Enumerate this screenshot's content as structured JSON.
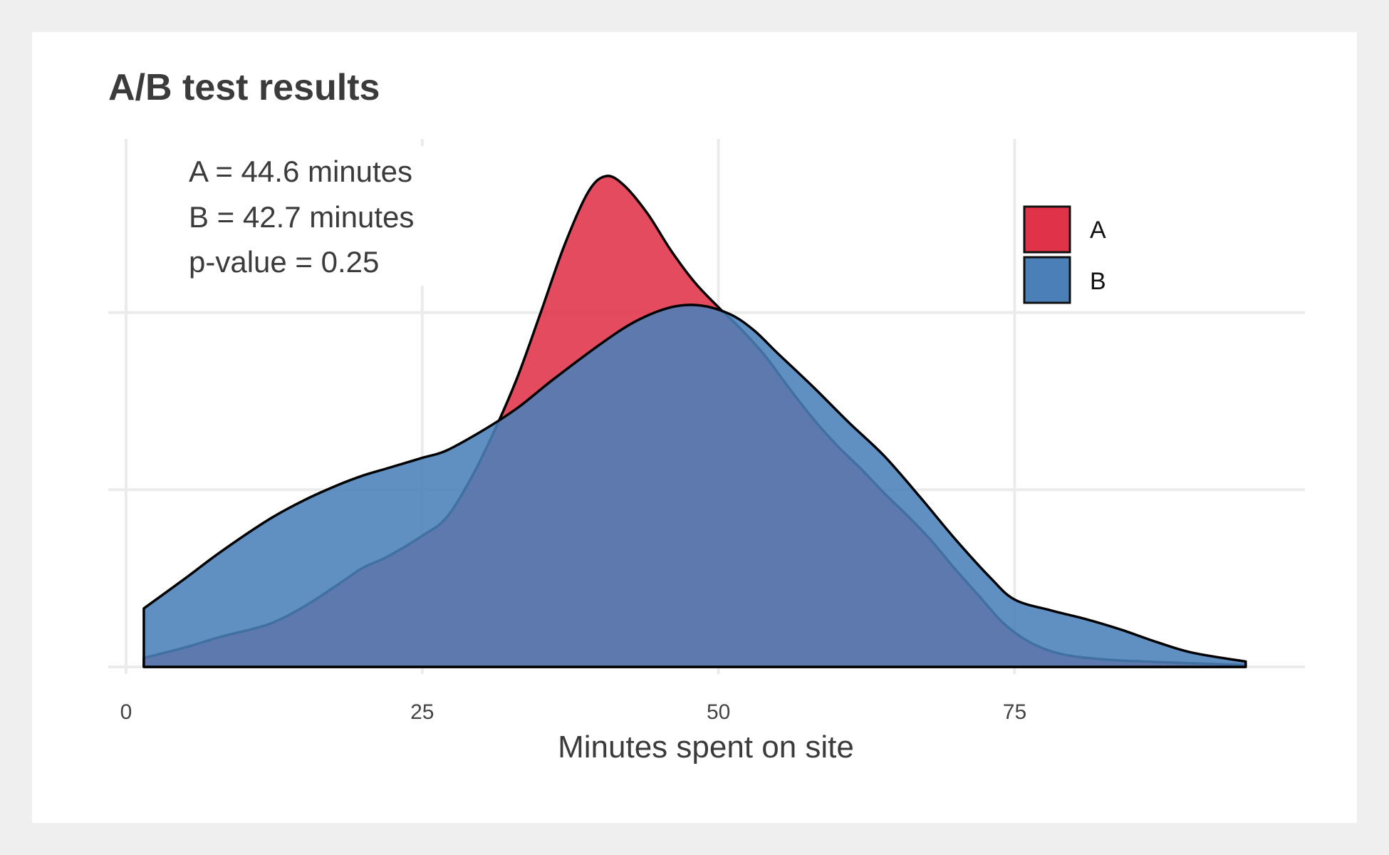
{
  "chart_data": {
    "type": "area",
    "title": "A/B test results",
    "xlabel": "Minutes spent on site",
    "ylabel": "",
    "xlim": [
      -1.5,
      99.5
    ],
    "ylim": [
      0,
      0.0298
    ],
    "x_ticks": [
      0,
      25,
      50,
      75
    ],
    "y_gridlines": [
      0,
      0.01,
      0.02
    ],
    "grid": true,
    "legend_position": "top-right",
    "annotations": [
      "A = 44.6 minutes",
      "B = 42.7 minutes",
      "p-value = 0.25"
    ],
    "series": [
      {
        "name": "A",
        "color": "#e03248",
        "x": [
          1.5,
          5,
          8,
          12,
          15,
          18,
          20,
          22,
          25,
          27,
          29,
          31,
          33,
          35,
          37,
          39,
          40.5,
          42,
          44,
          46,
          48,
          50,
          52,
          54,
          56,
          58,
          60,
          62,
          64,
          66,
          68,
          70,
          72,
          74,
          76,
          78,
          80,
          83,
          86,
          90,
          94.5
        ],
        "y": [
          0.0005,
          0.0011,
          0.0017,
          0.0024,
          0.0034,
          0.0047,
          0.0056,
          0.0062,
          0.0074,
          0.0084,
          0.0105,
          0.0132,
          0.0163,
          0.02,
          0.0238,
          0.0268,
          0.0277,
          0.0272,
          0.0256,
          0.0235,
          0.0217,
          0.0203,
          0.019,
          0.0175,
          0.0157,
          0.014,
          0.0125,
          0.0112,
          0.0098,
          0.0085,
          0.0071,
          0.0055,
          0.004,
          0.0025,
          0.0015,
          0.0009,
          0.0006,
          0.0004,
          0.0003,
          0.0002,
          0.0001
        ]
      },
      {
        "name": "B",
        "color": "#4a7fb8",
        "x": [
          1.5,
          5,
          8,
          12,
          15,
          18,
          20,
          22,
          25,
          27,
          30,
          33,
          36,
          40,
          43,
          46,
          48.5,
          51,
          53,
          55,
          58,
          61,
          64,
          67,
          70,
          73,
          75,
          78,
          81,
          84,
          87,
          90,
          94.5
        ],
        "y": [
          0.0033,
          0.005,
          0.0065,
          0.0083,
          0.0094,
          0.0103,
          0.0108,
          0.0112,
          0.0118,
          0.0122,
          0.0133,
          0.0146,
          0.0162,
          0.0182,
          0.0195,
          0.0203,
          0.0204,
          0.0199,
          0.019,
          0.0177,
          0.0158,
          0.0138,
          0.0119,
          0.0096,
          0.0072,
          0.005,
          0.0038,
          0.0032,
          0.0027,
          0.0021,
          0.0014,
          0.0008,
          0.0003
        ]
      }
    ]
  }
}
